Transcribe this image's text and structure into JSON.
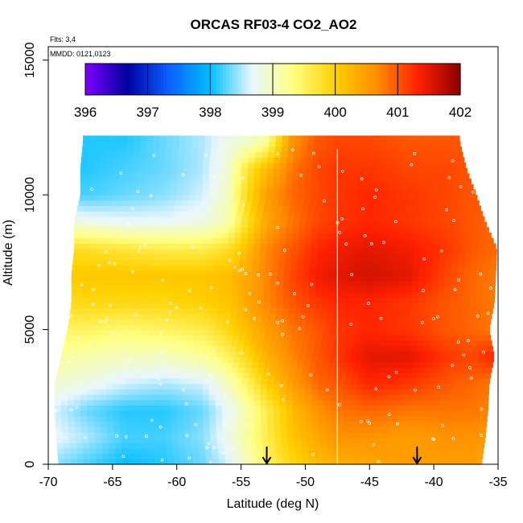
{
  "chart_data": {
    "type": "heatmap",
    "title": "ORCAS RF03-4 CO2_AO2",
    "xlabel": "Latitude (deg N)",
    "ylabel": "Altitude (m)",
    "xlim": [
      -70,
      -35
    ],
    "ylim": [
      0,
      15500
    ],
    "x_ticks": [
      -70,
      -65,
      -60,
      -55,
      -50,
      -45,
      -40,
      -35
    ],
    "y_ticks": [
      0,
      5000,
      10000,
      15000
    ],
    "annotations": [
      "Flts: 3,4",
      "MMDD: 0121,0123"
    ],
    "colorbar": {
      "min": 396,
      "max": 402,
      "ticks": [
        396,
        397,
        398,
        399,
        400,
        401,
        402
      ],
      "colors": [
        "#7f00ff",
        "#0000a0",
        "#0a60ff",
        "#00bfff",
        "#e8f6ff",
        "#ffff80",
        "#ffd000",
        "#ff8c00",
        "#ff2000",
        "#8b0000"
      ]
    },
    "vertical_line_lat": -47.5,
    "arrows_lat": [
      -53,
      -41.3
    ],
    "lat_nodes": [
      -69.5,
      -67,
      -64,
      -61,
      -58,
      -56,
      -54.5,
      -53,
      -51,
      -49,
      -47.5,
      -45,
      -42,
      -39,
      -37,
      -35.5
    ],
    "alt_nodes": [
      0,
      1000,
      2000,
      3000,
      4000,
      5000,
      6000,
      7000,
      8000,
      9000,
      10000,
      11000,
      12000
    ],
    "co2_grid": [
      [
        398.4,
        398.2,
        398.0,
        398.1,
        398.3,
        398.6,
        399.0,
        399.5,
        399.9,
        400.2,
        400.3,
        400.4,
        400.5,
        400.5,
        400.5,
        400.4
      ],
      [
        398.7,
        398.5,
        398.2,
        398.2,
        398.4,
        398.8,
        399.2,
        399.6,
        400.1,
        400.4,
        400.6,
        400.6,
        400.5,
        400.6,
        400.6,
        400.5
      ],
      [
        398.6,
        398.3,
        398.1,
        398.1,
        398.3,
        398.7,
        399.1,
        399.6,
        400.2,
        400.6,
        400.8,
        400.9,
        400.8,
        400.8,
        400.8,
        400.7
      ],
      [
        398.9,
        398.8,
        398.6,
        398.5,
        398.6,
        399.0,
        399.5,
        400.0,
        400.5,
        400.9,
        401.0,
        401.3,
        401.2,
        401.0,
        400.9,
        400.8
      ],
      [
        399.2,
        399.1,
        399.0,
        399.0,
        399.2,
        399.5,
        399.9,
        400.3,
        400.7,
        401.0,
        401.2,
        401.5,
        401.5,
        401.2,
        401.1,
        401.3
      ],
      [
        399.5,
        399.5,
        399.4,
        399.5,
        399.6,
        399.9,
        400.2,
        400.5,
        400.8,
        401.0,
        401.2,
        401.3,
        401.2,
        401.0,
        400.9,
        400.8
      ],
      [
        399.8,
        399.9,
        399.9,
        399.9,
        400.0,
        400.1,
        400.4,
        400.7,
        401.0,
        401.2,
        401.3,
        401.3,
        401.2,
        401.0,
        400.9,
        400.8
      ],
      [
        400.0,
        400.1,
        400.1,
        400.1,
        400.1,
        400.2,
        400.4,
        400.7,
        401.1,
        401.4,
        401.5,
        401.6,
        401.5,
        401.1,
        400.9,
        400.8
      ],
      [
        399.9,
        399.8,
        399.7,
        399.6,
        399.6,
        399.8,
        400.2,
        400.7,
        401.0,
        401.3,
        401.4,
        401.5,
        401.4,
        401.2,
        401.0,
        400.9
      ],
      [
        398.9,
        398.8,
        398.7,
        398.7,
        398.8,
        399.1,
        399.8,
        400.4,
        400.8,
        401.1,
        401.2,
        401.3,
        401.2,
        401.1,
        401.0,
        400.9
      ],
      [
        398.3,
        398.2,
        398.3,
        398.4,
        398.6,
        399.0,
        399.9,
        400.5,
        400.9,
        401.1,
        401.2,
        401.3,
        401.2,
        401.1,
        401.0,
        400.9
      ],
      [
        398.1,
        398.1,
        398.2,
        398.3,
        398.5,
        398.9,
        399.7,
        400.2,
        400.8,
        401.1,
        401.2,
        401.2,
        401.1,
        401.1,
        401.0,
        400.9
      ],
      [
        398.0,
        398.1,
        398.1,
        398.3,
        398.5,
        398.8,
        398.9,
        399.2,
        400.6,
        401.0,
        401.1,
        401.1,
        401.0,
        401.0,
        401.0,
        400.9
      ]
    ],
    "row_edges": [
      {
        "alt": 0,
        "lat_min": -69.2,
        "lat_max": -36.3
      },
      {
        "alt": 1000,
        "lat_min": -69.4,
        "lat_max": -36.0
      },
      {
        "alt": 2000,
        "lat_min": -69.5,
        "lat_max": -35.8
      },
      {
        "alt": 3000,
        "lat_min": -69.5,
        "lat_max": -35.7
      },
      {
        "alt": 4000,
        "lat_min": -69.0,
        "lat_max": -35.3
      },
      {
        "alt": 5000,
        "lat_min": -68.5,
        "lat_max": -35.7
      },
      {
        "alt": 6000,
        "lat_min": -68.2,
        "lat_max": -35.3
      },
      {
        "alt": 7000,
        "lat_min": -68.2,
        "lat_max": -35.2
      },
      {
        "alt": 8000,
        "lat_min": -68.0,
        "lat_max": -35.1
      },
      {
        "alt": 9000,
        "lat_min": -68.0,
        "lat_max": -36.0
      },
      {
        "alt": 10000,
        "lat_min": -67.5,
        "lat_max": -36.7
      },
      {
        "alt": 11000,
        "lat_min": -67.5,
        "lat_max": -37.5
      },
      {
        "alt": 12000,
        "lat_min": -67.3,
        "lat_max": -38.0
      }
    ]
  }
}
